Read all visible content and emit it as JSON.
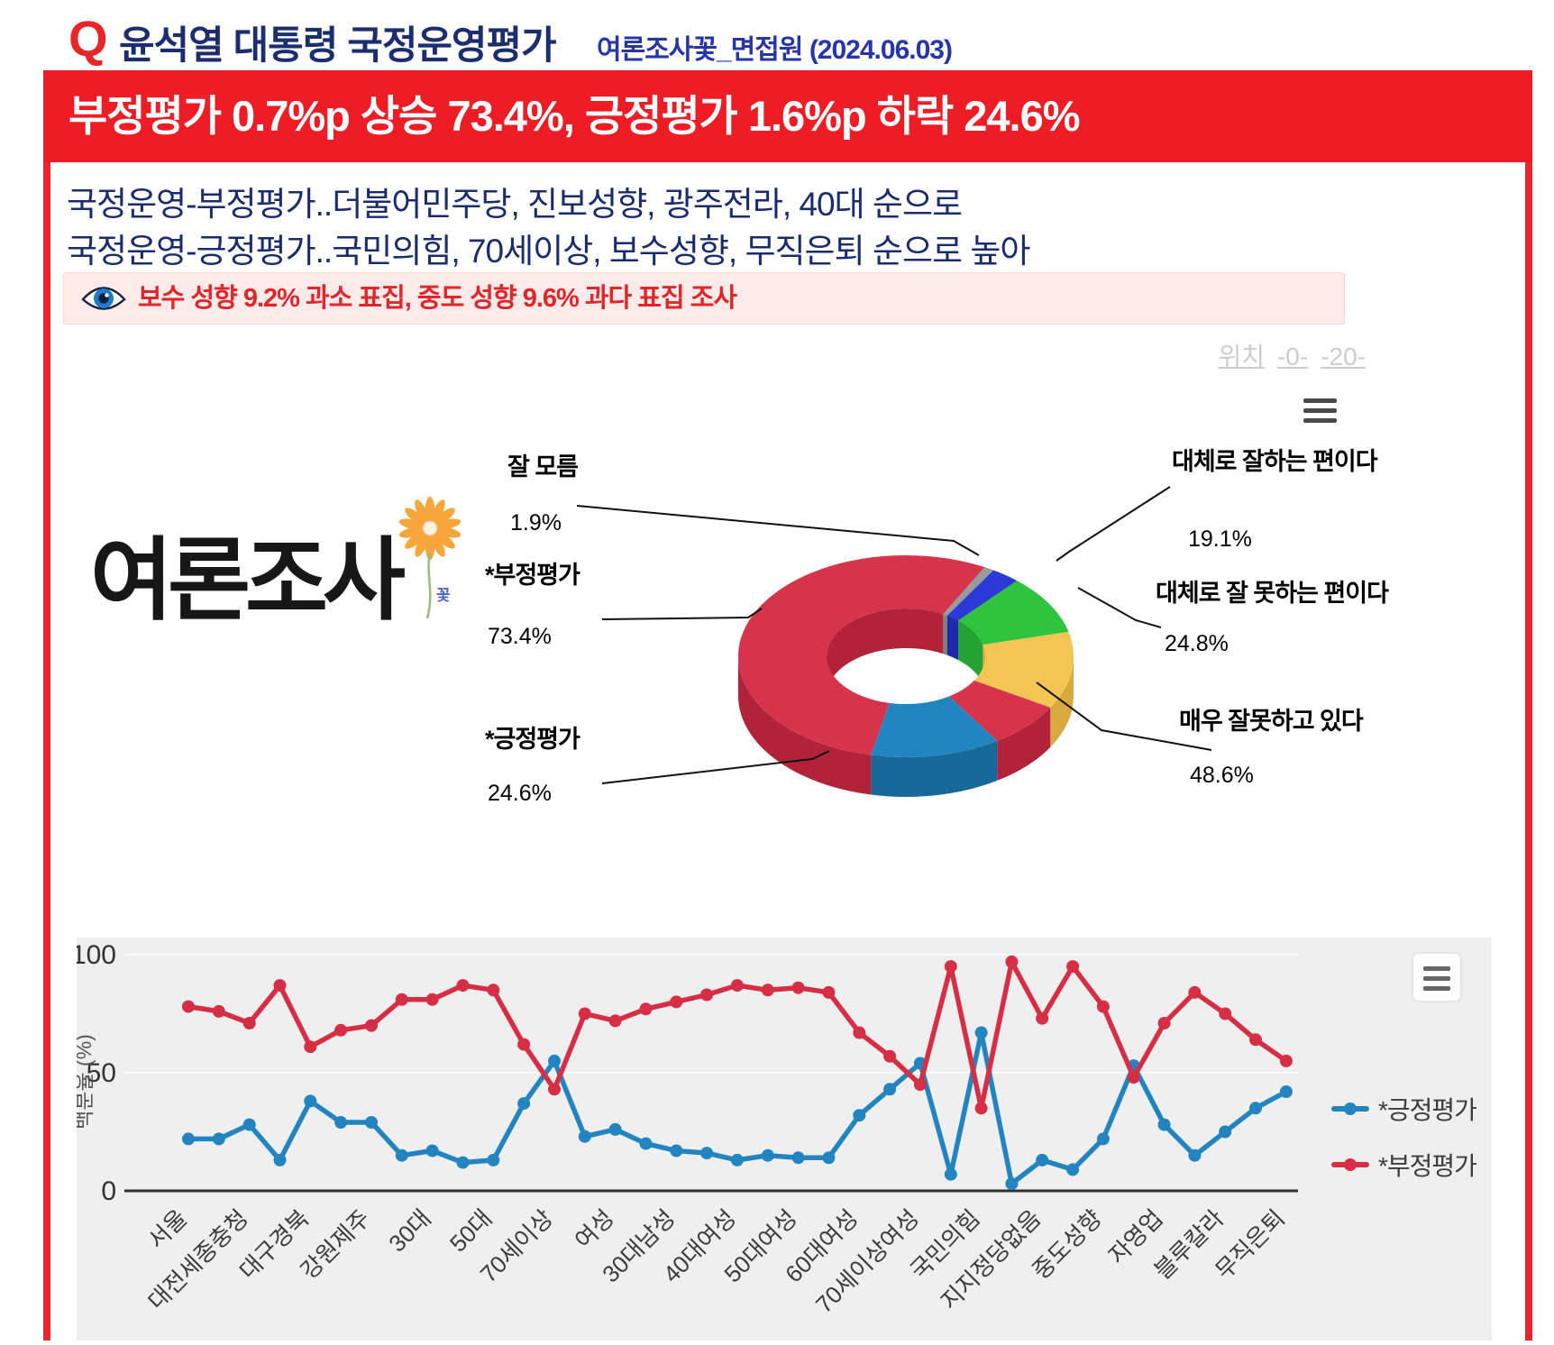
{
  "header": {
    "q": "Q",
    "title": "윤석열 대통령 국정운영평가",
    "subtitle": "여론조사꽃_면접원 (2024.06.03)"
  },
  "banner": {
    "text": "부정평가 0.7%p 상승 73.4%, 긍정평가 1.6%p 하락 24.6%"
  },
  "summary": {
    "line1": "국정운영-부정평가..더불어민주당, 진보성향, 광주전라, 40대 순으로",
    "line2": "국정운영-긍정평가..국민의힘, 70세이상, 보수성향, 무직은퇴 순으로 높아"
  },
  "notice": {
    "icon": "eye-icon",
    "text": "보수 성향 9.2% 과소 표집, 중도 성향 9.6% 과다 표집 조사"
  },
  "position_links": {
    "label": "위치",
    "links": [
      "-0-",
      "-20-"
    ]
  },
  "logo": {
    "text": "여론조사",
    "flower_text": "꽃"
  },
  "colors": {
    "banner_red": "#ee1c25",
    "frame_red": "#e8252b",
    "title_navy": "#1c2e6f",
    "subtitle_blue": "#2735a6",
    "notice_red": "#e2242b",
    "positive_blue": "#2285c0",
    "negative_red": "#d6344a",
    "chart_bg": "#efefef"
  },
  "chart_data": [
    {
      "type": "pie",
      "subtype": "3d-donut",
      "slices": [
        {
          "label": "잘 모름",
          "value": 1.9,
          "color": "#9a9a9a",
          "dark": "#7f7f7f"
        },
        {
          "label": "",
          "value": 5.5,
          "color": "#2b3ad6",
          "dark": "#1e2aad"
        },
        {
          "label": "대체로 잘하는 편이다",
          "value": 19.1,
          "color": "#2fc33e",
          "dark": "#24a332"
        },
        {
          "label": "대체로 잘 못하는 편이다",
          "value": 24.8,
          "color": "#f3c553",
          "dark": "#d8a93c"
        },
        {
          "label": "매우 잘못하고 있다",
          "value": 48.6,
          "color": "#d6344a",
          "dark": "#b2233a"
        },
        {
          "label": "*긍정평가",
          "value": 24.6,
          "color": "#2186c0",
          "dark": "#17699c"
        },
        {
          "label": "*부정평가",
          "value": 73.4,
          "color": "#d6344a",
          "dark": "#b2233a"
        }
      ]
    },
    {
      "type": "line",
      "ylabel": "백분율 (%)",
      "ylim": [
        0,
        100
      ],
      "yticks": [
        0,
        50,
        100
      ],
      "grid": true,
      "legend_position": "right",
      "categories": [
        "서울",
        "",
        "대전세종충청",
        "",
        "대구경북",
        "",
        "강원제주",
        "",
        "30대",
        "",
        "50대",
        "",
        "70세이상",
        "",
        "여성",
        "",
        "30대남성",
        "",
        "40대여성",
        "",
        "50대여성",
        "",
        "60대여성",
        "",
        "70세이상여성",
        "",
        "국민의힘",
        "",
        "지지정당없음",
        "",
        "중도성향",
        "",
        "자영업",
        "",
        "블루칼라",
        "",
        "무직은퇴"
      ],
      "series": [
        {
          "name": "*긍정평가",
          "color": "#2285c0",
          "values": [
            22,
            22,
            28,
            13,
            38,
            29,
            29,
            15,
            17,
            12,
            13,
            37,
            55,
            23,
            26,
            20,
            17,
            16,
            13,
            15,
            14,
            14,
            32,
            43,
            54,
            7,
            67,
            3,
            13,
            9,
            22,
            53,
            28,
            15,
            25,
            35,
            42
          ]
        },
        {
          "name": "*부정평가",
          "color": "#d62f45",
          "values": [
            78,
            76,
            71,
            87,
            61,
            68,
            70,
            81,
            81,
            87,
            85,
            62,
            43,
            75,
            72,
            77,
            80,
            83,
            87,
            85,
            86,
            84,
            67,
            57,
            45,
            95,
            35,
            97,
            73,
            95,
            78,
            48,
            71,
            84,
            75,
            64,
            55
          ]
        }
      ]
    }
  ]
}
